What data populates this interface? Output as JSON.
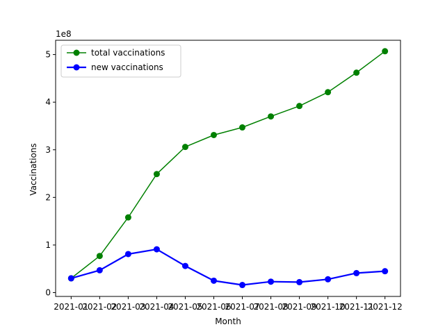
{
  "chart_data": {
    "type": "line",
    "xlabel": "Month",
    "ylabel": "Vaccinations",
    "y_offset_text": "1e8",
    "categories": [
      "2021-01",
      "2021-02",
      "2021-03",
      "2021-04",
      "2021-05",
      "2021-06",
      "2021-07",
      "2021-08",
      "2021-09",
      "2021-10",
      "2021-11",
      "2021-12"
    ],
    "ylim": [
      -0.08,
      5.3
    ],
    "yticks": [
      0,
      1,
      2,
      3,
      4,
      5
    ],
    "legend_position": "upper-left",
    "grid": false,
    "series": [
      {
        "name": "total vaccinations",
        "color": "#008000",
        "line_width": "thin",
        "values": [
          0.3,
          0.77,
          1.58,
          2.49,
          3.06,
          3.31,
          3.47,
          3.7,
          3.92,
          4.21,
          4.62,
          5.07
        ]
      },
      {
        "name": "new vaccinations",
        "color": "#0000ff",
        "line_width": "thick",
        "values": [
          0.3,
          0.47,
          0.81,
          0.91,
          0.56,
          0.25,
          0.16,
          0.23,
          0.22,
          0.28,
          0.41,
          0.45
        ]
      }
    ]
  }
}
